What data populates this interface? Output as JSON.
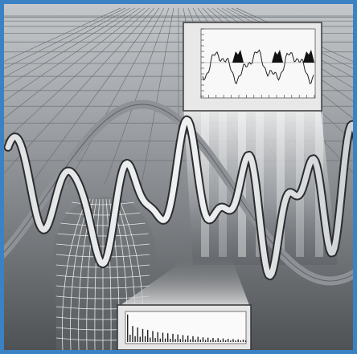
{
  "colors": {
    "frame": "#3b82c4",
    "scene_top": "#bcc0c4",
    "scene_bottom": "#55585c",
    "wave_fill": "#cfd2d5",
    "wave_edge": "#2a2c2e",
    "sine_fill": "#8e9296",
    "panel_fill": "#f4f4f4"
  },
  "icons": {
    "head": "wireframe-head-icon"
  },
  "top_plot": {
    "y_tick_labels": [
      "",
      "",
      "",
      "",
      "",
      "",
      "",
      "",
      "",
      "",
      "",
      "",
      ""
    ],
    "x_tick_labels": [
      "",
      "",
      "",
      "",
      "",
      "",
      "",
      "",
      "",
      "",
      "",
      "",
      "",
      "",
      "",
      ""
    ]
  },
  "bottom_plot": {
    "bar_levels": [
      0.95,
      0.25,
      0.55,
      0.2,
      0.5,
      0.18,
      0.45,
      0.2,
      0.42,
      0.15,
      0.38,
      0.14,
      0.34,
      0.12,
      0.32,
      0.12,
      0.3,
      0.11,
      0.28,
      0.1,
      0.26,
      0.1,
      0.24,
      0.09,
      0.22,
      0.09,
      0.2,
      0.08,
      0.18,
      0.08,
      0.16,
      0.07,
      0.15,
      0.07,
      0.14,
      0.06,
      0.13,
      0.06,
      0.12,
      0.06,
      0.11,
      0.05,
      0.1,
      0.05,
      0.09,
      0.05,
      0.08,
      0.05
    ]
  }
}
